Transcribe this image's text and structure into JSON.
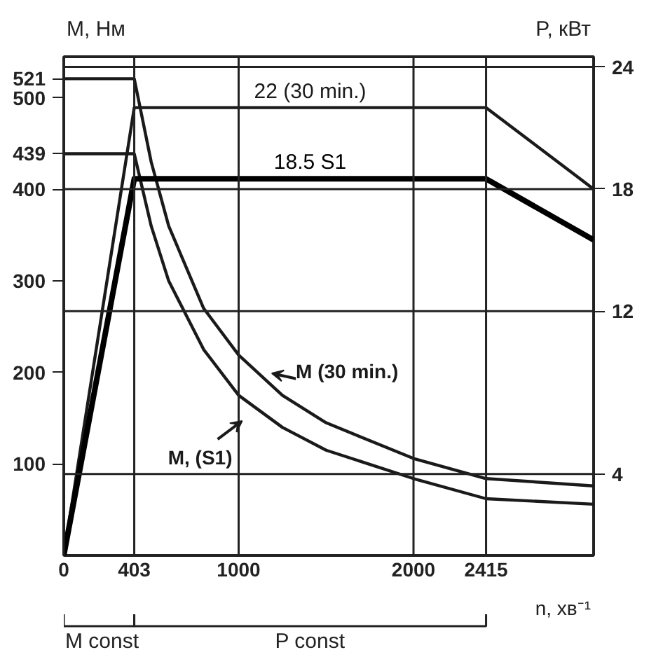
{
  "chart_data": {
    "type": "line",
    "xlabel": "n, хв⁻¹",
    "ylabel": "M, Нм",
    "y2label": "P, кВт",
    "x": [
      0,
      403,
      500,
      600,
      800,
      1000,
      1250,
      1500,
      2000,
      2415,
      3030
    ],
    "series": [
      {
        "name": "M (30 min.)",
        "color": "#1a1a1a",
        "values": [
          521,
          521,
          430,
          360,
          270,
          219,
          175,
          145,
          106,
          84,
          76
        ]
      },
      {
        "name": "M, (S1)",
        "color": "#1a1a1a",
        "values": [
          439,
          439,
          360,
          300,
          225,
          175,
          140,
          115,
          84,
          62,
          56
        ]
      },
      {
        "name": "22 (30 min.)",
        "color": "#1a1a1a",
        "axis": "y2",
        "x": [
          0,
          403,
          2415,
          3030
        ],
        "values": [
          0,
          22,
          22,
          18
        ]
      },
      {
        "name": "18.5 S1",
        "color": "#000000",
        "axis": "y2",
        "x": [
          0,
          403,
          2415,
          3030
        ],
        "values": [
          0,
          18.5,
          18.5,
          15.5
        ]
      }
    ],
    "xlim": [
      0,
      3030
    ],
    "xticks": [
      0,
      403,
      1000,
      2000,
      2415
    ],
    "ylim": [
      0,
      545
    ],
    "yticks": [
      100,
      200,
      300,
      400,
      439,
      500,
      521
    ],
    "y2lim": [
      0,
      24.5
    ],
    "y2ticks": [
      4,
      12,
      18,
      24
    ],
    "grid": true,
    "annotations": [
      "M const",
      "P const"
    ]
  }
}
